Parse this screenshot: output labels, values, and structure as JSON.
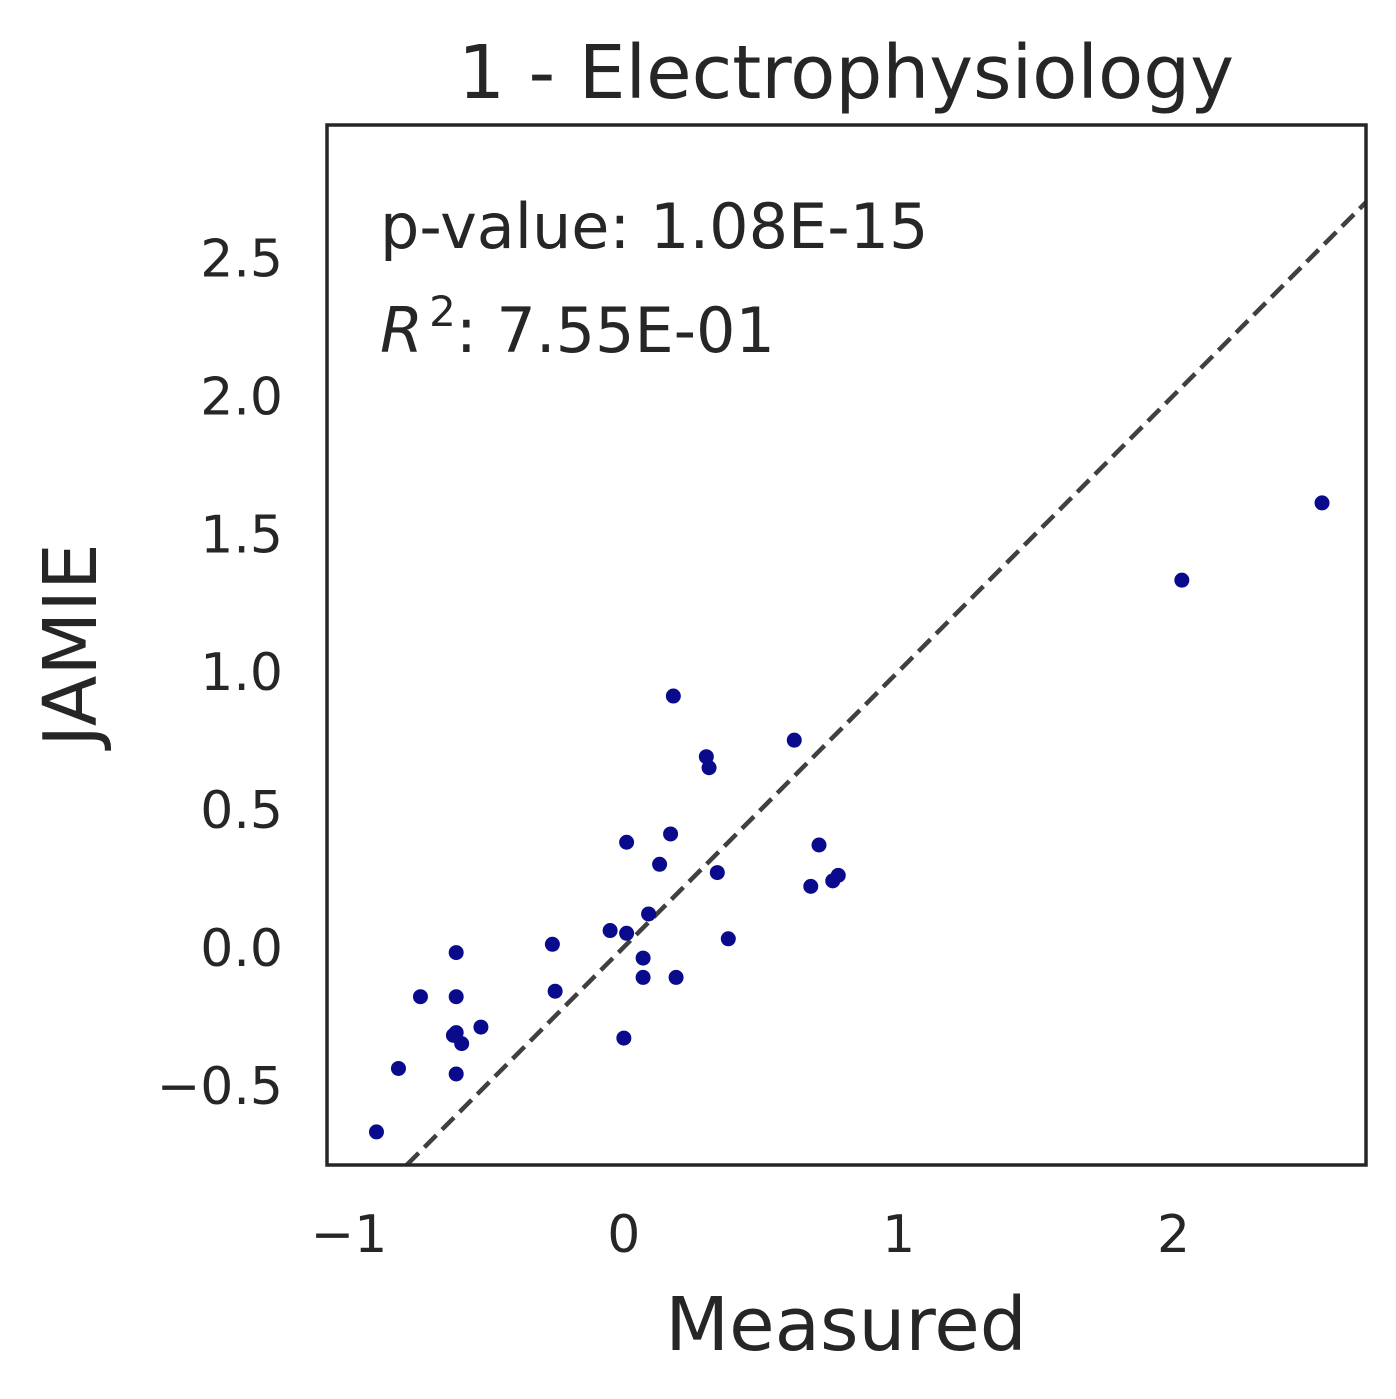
{
  "chart_data": {
    "type": "scatter",
    "title": "1 - Electrophysiology",
    "xlabel": "Measured",
    "ylabel": "JAMIE",
    "xlim": [
      -1.08,
      2.7
    ],
    "ylim": [
      -0.79,
      2.98
    ],
    "xticks": [
      -1,
      0,
      1,
      2
    ],
    "xtick_labels": [
      "−1",
      "0",
      "1",
      "2"
    ],
    "yticks": [
      -0.5,
      0.0,
      0.5,
      1.0,
      1.5,
      2.0,
      2.5
    ],
    "ytick_labels": [
      "−0.5",
      "0.0",
      "0.5",
      "1.0",
      "1.5",
      "2.0",
      "2.5"
    ],
    "grid": false,
    "annotations": {
      "pvalue_label": "p-value: 1.08E-15",
      "r2_symbol": "R",
      "r2_exponent": "2",
      "r2_value": ": 7.55E-01"
    },
    "reference_line": {
      "slope": 1,
      "intercept": 0,
      "style": "dashed"
    },
    "colors": {
      "points": "#0a0a8c",
      "reference_line": "#404040",
      "axes": "#262626"
    },
    "points": [
      {
        "x": -0.9,
        "y": -0.67
      },
      {
        "x": -0.82,
        "y": -0.44
      },
      {
        "x": -0.74,
        "y": -0.18
      },
      {
        "x": -0.61,
        "y": -0.02
      },
      {
        "x": -0.61,
        "y": -0.18
      },
      {
        "x": -0.61,
        "y": -0.31
      },
      {
        "x": -0.62,
        "y": -0.32
      },
      {
        "x": -0.59,
        "y": -0.35
      },
      {
        "x": -0.52,
        "y": -0.29
      },
      {
        "x": -0.61,
        "y": -0.46
      },
      {
        "x": -0.26,
        "y": 0.01
      },
      {
        "x": -0.25,
        "y": -0.16
      },
      {
        "x": -0.05,
        "y": 0.06
      },
      {
        "x": 0.01,
        "y": 0.05
      },
      {
        "x": 0.01,
        "y": 0.38
      },
      {
        "x": 0.0,
        "y": -0.33
      },
      {
        "x": 0.07,
        "y": -0.04
      },
      {
        "x": 0.07,
        "y": -0.11
      },
      {
        "x": 0.09,
        "y": 0.12
      },
      {
        "x": 0.13,
        "y": 0.3
      },
      {
        "x": 0.17,
        "y": 0.41
      },
      {
        "x": 0.18,
        "y": 0.91
      },
      {
        "x": 0.19,
        "y": -0.11
      },
      {
        "x": 0.3,
        "y": 0.69
      },
      {
        "x": 0.31,
        "y": 0.65
      },
      {
        "x": 0.34,
        "y": 0.27
      },
      {
        "x": 0.38,
        "y": 0.03
      },
      {
        "x": 0.62,
        "y": 0.75
      },
      {
        "x": 0.68,
        "y": 0.22
      },
      {
        "x": 0.71,
        "y": 0.37
      },
      {
        "x": 0.76,
        "y": 0.24
      },
      {
        "x": 0.78,
        "y": 0.26
      },
      {
        "x": 2.03,
        "y": 1.33
      },
      {
        "x": 2.54,
        "y": 1.61
      }
    ]
  }
}
